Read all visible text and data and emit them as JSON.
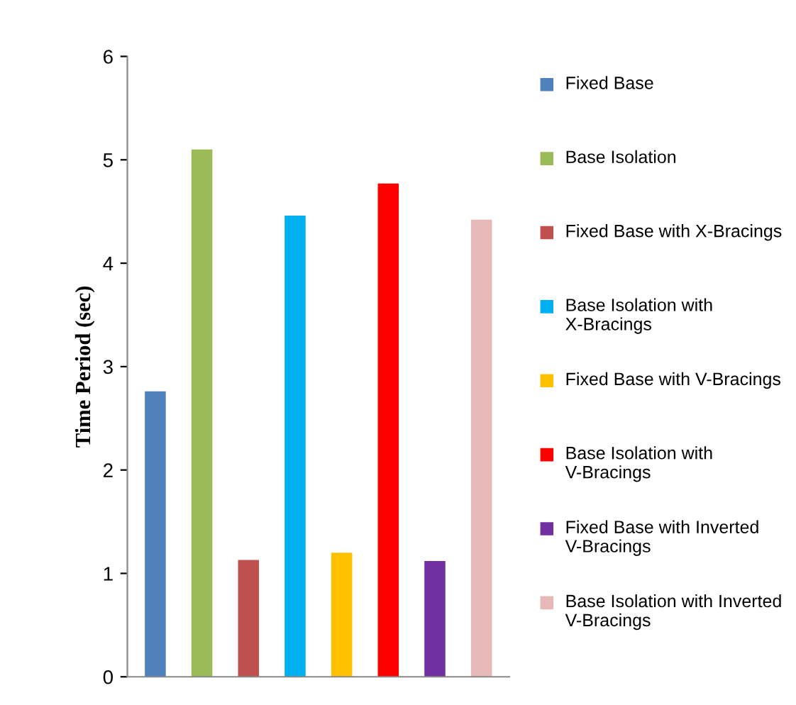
{
  "chart_data": {
    "type": "bar",
    "ylabel": "Time Period (sec)",
    "categories": [
      null,
      null,
      null,
      null,
      null,
      null,
      null,
      null
    ],
    "series": [
      {
        "name": "Fixed Base",
        "color": "#4f81bd",
        "values": [
          2.76,
          null,
          null,
          null,
          null,
          null,
          null,
          null
        ]
      },
      {
        "name": "Base Isolation",
        "color": "#9bbb59",
        "values": [
          null,
          5.1,
          null,
          null,
          null,
          null,
          null,
          null
        ]
      },
      {
        "name": "Fixed Base with X-Bracings",
        "color": "#c0504d",
        "values": [
          null,
          null,
          1.13,
          null,
          null,
          null,
          null,
          null
        ]
      },
      {
        "name": "Base Isolation with X-Bracings",
        "color": "#00b0f0",
        "values": [
          null,
          null,
          null,
          4.46,
          null,
          null,
          null,
          null
        ]
      },
      {
        "name": "Fixed Base with V-Bracings",
        "color": "#ffc000",
        "values": [
          null,
          null,
          null,
          null,
          1.2,
          null,
          null,
          null
        ]
      },
      {
        "name": "Base Isolation with V-Bracings",
        "color": "#ff0000",
        "values": [
          null,
          null,
          null,
          null,
          null,
          4.77,
          null,
          null
        ]
      },
      {
        "name": "Fixed Base with Inverted V-Bracings",
        "color": "#7030a0",
        "values": [
          null,
          null,
          null,
          null,
          null,
          null,
          1.12,
          null
        ]
      },
      {
        "name": "Base Isolation with Inverted V-Bracings",
        "color": "#e6b9b8",
        "values": [
          null,
          null,
          null,
          null,
          null,
          null,
          null,
          4.42
        ]
      }
    ],
    "ylim": [
      0,
      6
    ],
    "yticks": [
      0,
      1,
      2,
      3,
      4,
      5,
      6
    ],
    "grid": false,
    "legend": "right"
  }
}
